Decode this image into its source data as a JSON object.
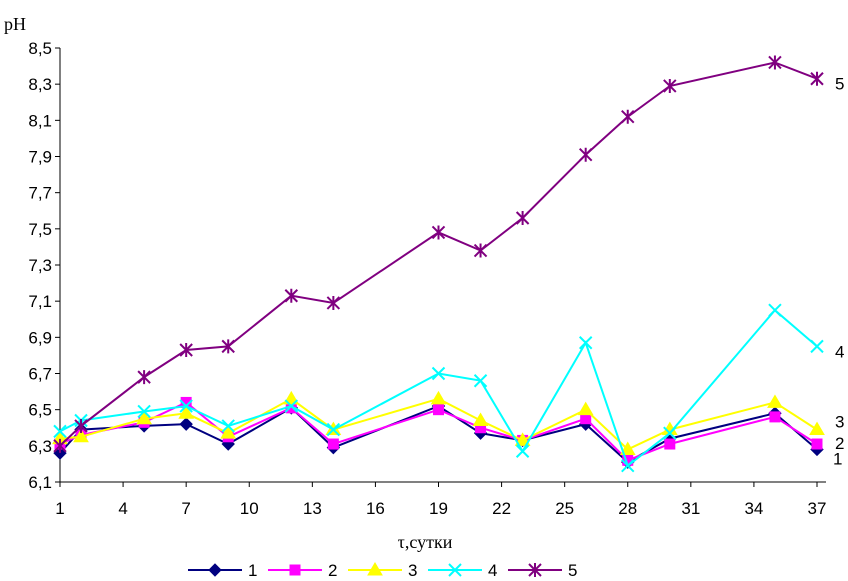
{
  "chart_data": {
    "type": "line",
    "ylabel": "pH",
    "xlabel": "τ,сутки",
    "ylim": [
      6.1,
      8.5
    ],
    "y_ticks": [
      "6,1",
      "6,3",
      "6,5",
      "6,7",
      "6,9",
      "7,1",
      "7,3",
      "7,5",
      "7,7",
      "7,9",
      "8,1",
      "8,3",
      "8,5"
    ],
    "x_ticks": [
      "1",
      "4",
      "7",
      "10",
      "13",
      "16",
      "19",
      "22",
      "25",
      "28",
      "31",
      "34",
      "37"
    ],
    "xlim": [
      1,
      37
    ],
    "grid": false,
    "legend_position": "bottom",
    "series": [
      {
        "name": "1",
        "color": "#000080",
        "marker": "diamond",
        "end_label": "1",
        "points": [
          [
            1,
            6.26
          ],
          [
            2,
            6.39
          ],
          [
            5,
            6.41
          ],
          [
            7,
            6.42
          ],
          [
            9,
            6.31
          ],
          [
            12,
            6.51
          ],
          [
            14,
            6.29
          ],
          [
            19,
            6.52
          ],
          [
            21,
            6.37
          ],
          [
            23,
            6.33
          ],
          [
            26,
            6.42
          ],
          [
            28,
            6.21
          ],
          [
            30,
            6.34
          ],
          [
            35,
            6.48
          ],
          [
            37,
            6.28
          ]
        ]
      },
      {
        "name": "2",
        "color": "#ff00ff",
        "marker": "square",
        "end_label": "2",
        "points": [
          [
            1,
            6.31
          ],
          [
            2,
            6.36
          ],
          [
            5,
            6.43
          ],
          [
            7,
            6.54
          ],
          [
            9,
            6.35
          ],
          [
            12,
            6.51
          ],
          [
            14,
            6.31
          ],
          [
            19,
            6.5
          ],
          [
            21,
            6.4
          ],
          [
            23,
            6.33
          ],
          [
            26,
            6.45
          ],
          [
            28,
            6.22
          ],
          [
            30,
            6.31
          ],
          [
            35,
            6.46
          ],
          [
            37,
            6.31
          ]
        ]
      },
      {
        "name": "3",
        "color": "#ffff00",
        "marker": "triangle",
        "end_label": "3",
        "points": [
          [
            1,
            6.34
          ],
          [
            2,
            6.35
          ],
          [
            5,
            6.45
          ],
          [
            7,
            6.48
          ],
          [
            9,
            6.37
          ],
          [
            12,
            6.56
          ],
          [
            14,
            6.39
          ],
          [
            19,
            6.56
          ],
          [
            21,
            6.44
          ],
          [
            23,
            6.33
          ],
          [
            26,
            6.5
          ],
          [
            28,
            6.28
          ],
          [
            30,
            6.39
          ],
          [
            35,
            6.54
          ],
          [
            37,
            6.39
          ]
        ]
      },
      {
        "name": "4",
        "color": "#00ffff",
        "marker": "x",
        "end_label": "4",
        "points": [
          [
            1,
            6.38
          ],
          [
            2,
            6.44
          ],
          [
            5,
            6.49
          ],
          [
            7,
            6.52
          ],
          [
            9,
            6.41
          ],
          [
            12,
            6.52
          ],
          [
            14,
            6.39
          ],
          [
            19,
            6.7
          ],
          [
            21,
            6.66
          ],
          [
            23,
            6.27
          ],
          [
            26,
            6.87
          ],
          [
            28,
            6.19
          ],
          [
            30,
            6.37
          ],
          [
            35,
            7.05
          ],
          [
            37,
            6.85
          ]
        ]
      },
      {
        "name": "5",
        "color": "#800080",
        "marker": "star",
        "end_label": "5",
        "points": [
          [
            1,
            6.3
          ],
          [
            2,
            6.41
          ],
          [
            5,
            6.68
          ],
          [
            7,
            6.83
          ],
          [
            9,
            6.85
          ],
          [
            12,
            7.13
          ],
          [
            14,
            7.09
          ],
          [
            19,
            7.48
          ],
          [
            21,
            7.38
          ],
          [
            23,
            7.56
          ],
          [
            26,
            7.91
          ],
          [
            28,
            8.12
          ],
          [
            30,
            8.29
          ],
          [
            35,
            8.42
          ],
          [
            37,
            8.33
          ]
        ]
      }
    ]
  }
}
